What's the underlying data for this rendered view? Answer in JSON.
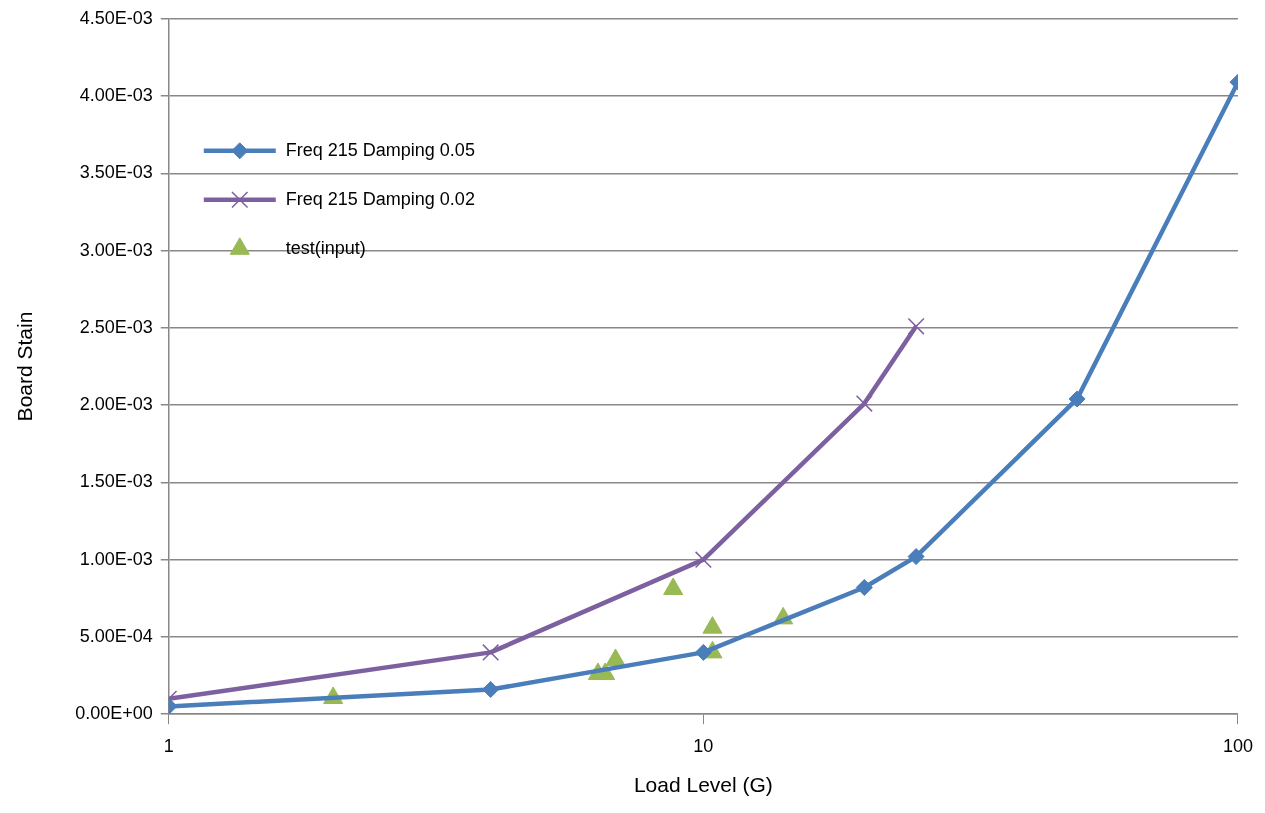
{
  "chart_data": {
    "type": "line",
    "xlabel": "Load Level (G)",
    "ylabel": "Board Stain",
    "log": "x",
    "xlim": [
      1,
      100
    ],
    "xticks": [
      1,
      10,
      100
    ],
    "ylim": [
      0,
      0.0045
    ],
    "yticks": [
      {
        "value": 0,
        "label": "0.00E+00"
      },
      {
        "value": 0.0005,
        "label": "5.00E-04"
      },
      {
        "value": 0.001,
        "label": "1.00E-03"
      },
      {
        "value": 0.0015,
        "label": "1.50E-03"
      },
      {
        "value": 0.002,
        "label": "2.00E-03"
      },
      {
        "value": 0.0025,
        "label": "2.50E-03"
      },
      {
        "value": 0.003,
        "label": "3.00E-03"
      },
      {
        "value": 0.0035,
        "label": "3.50E-03"
      },
      {
        "value": 0.004,
        "label": "4.00E-03"
      },
      {
        "value": 0.0045,
        "label": "4.50E-03"
      }
    ],
    "grid": "y",
    "legend": "top left",
    "series": [
      {
        "name": "Freq 215 Damping 0.05",
        "color": "#4a7ebb",
        "marker": "diamond",
        "x": [
          1,
          4,
          10,
          20,
          25,
          50,
          100
        ],
        "values": [
          5e-05,
          0.00016,
          0.0004,
          0.00082,
          0.00102,
          0.00204,
          0.00409
        ]
      },
      {
        "name": "Freq 215 Damping 0.02",
        "color": "#7d60a0",
        "marker": "cross",
        "x": [
          1,
          4,
          10,
          20,
          25
        ],
        "values": [
          0.0001,
          0.0004,
          0.001,
          0.00201,
          0.00251
        ]
      },
      {
        "name": "test(input)",
        "type": "scatter",
        "color": "#98b954",
        "marker": "triangle",
        "x": [
          2.03,
          6.35,
          6.55,
          6.85,
          8.78,
          10.4,
          10.4,
          14.1
        ],
        "values": [
          0.000105,
          0.00026,
          0.00026,
          0.00035,
          0.00081,
          0.00056,
          0.0004,
          0.00062
        ]
      }
    ]
  }
}
